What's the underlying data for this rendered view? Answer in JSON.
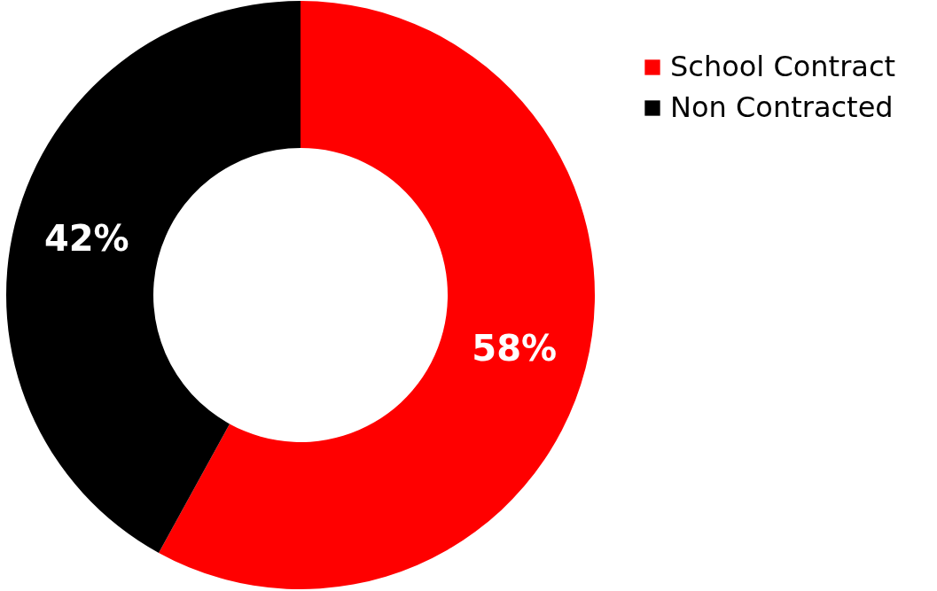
{
  "chart_data": {
    "type": "donut",
    "categories": [
      "School Contract",
      "Non Contracted"
    ],
    "values": [
      58,
      42
    ],
    "colors": [
      "#ff0000",
      "#000000"
    ],
    "data_labels": true,
    "value_labels": [
      "58%",
      "42%"
    ],
    "legend": "top right"
  }
}
